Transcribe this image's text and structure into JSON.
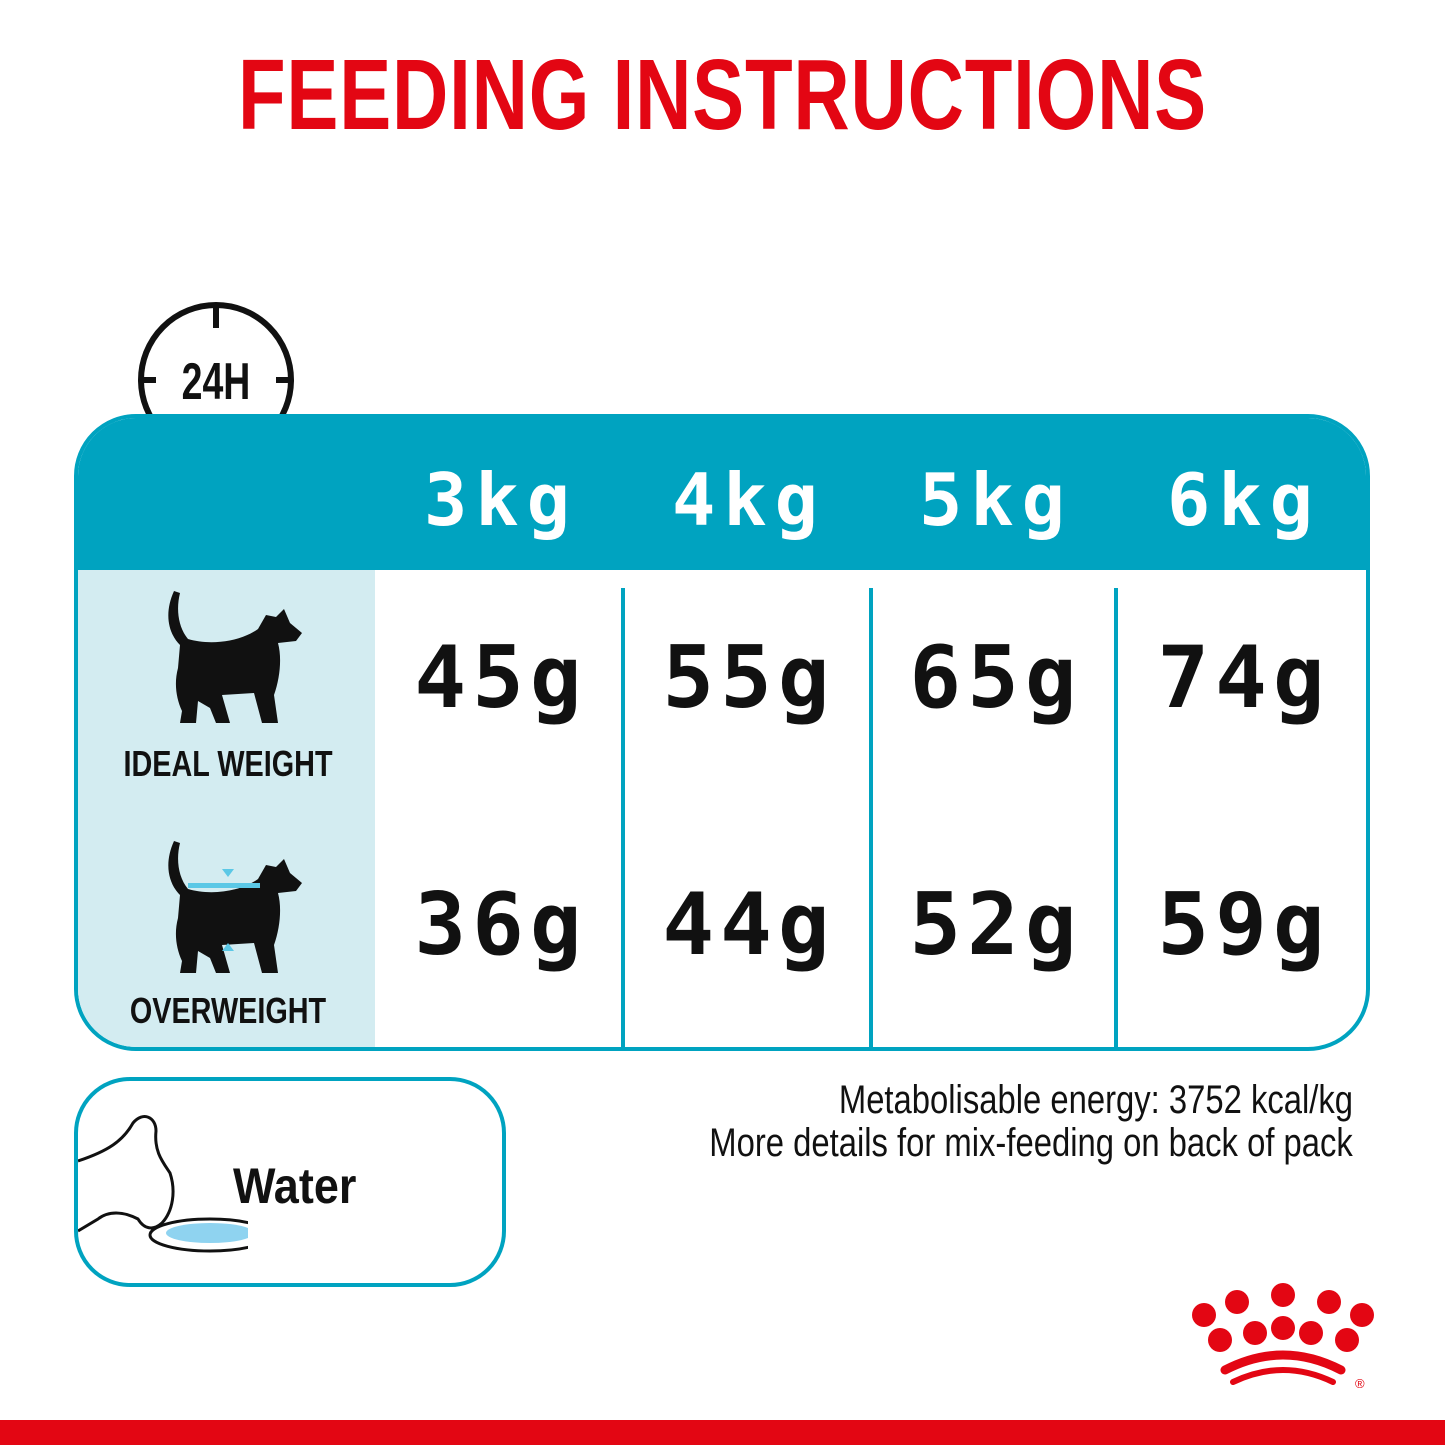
{
  "title": "FEEDING INSTRUCTIONS",
  "clock_label": "24H",
  "columns": [
    "3kg",
    "4kg",
    "5kg",
    "6kg"
  ],
  "rows": [
    {
      "label": "IDEAL WEIGHT",
      "icon": "cat-ideal-weight-icon",
      "values": [
        "45g",
        "55g",
        "65g",
        "74g"
      ]
    },
    {
      "label": "OVERWEIGHT",
      "icon": "cat-overweight-icon",
      "values": [
        "36g",
        "44g",
        "52g",
        "59g"
      ]
    }
  ],
  "water_label": "Water",
  "notes": [
    "Metabolisable energy: 3752 kcal/kg",
    "More details for mix-feeding on back of pack"
  ],
  "colors": {
    "brand_red": "#e30613",
    "teal": "#00a3c0",
    "light_blue": "#d3ecf1"
  },
  "logo": "royal-canin-crown-logo"
}
